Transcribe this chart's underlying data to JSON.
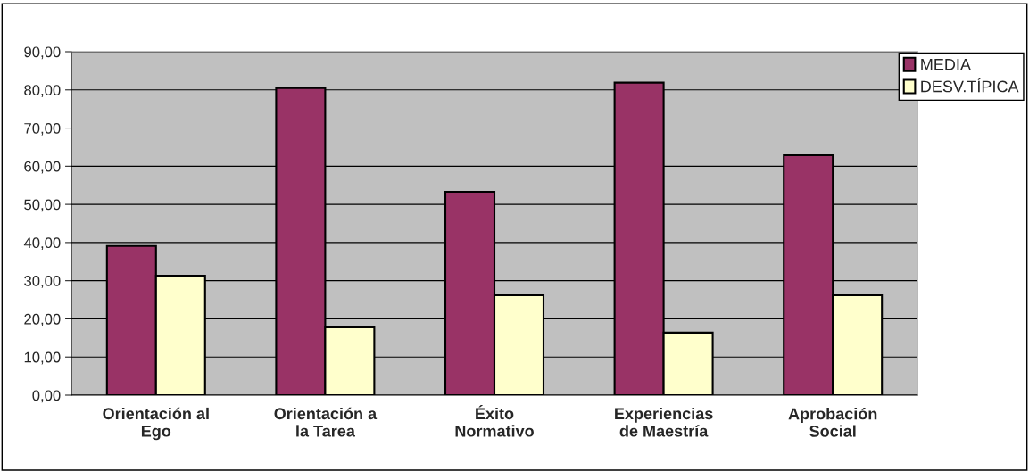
{
  "chart_data": {
    "type": "bar",
    "categories": [
      "Orientación al\nEgo",
      "Orientación a\nla Tarea",
      "Éxito\nNormativo",
      "Experiencias\nde Maestría",
      "Aprobación\nSocial"
    ],
    "series": [
      {
        "name": "MEDIA",
        "color": "#993366",
        "values": [
          39.1,
          80.5,
          53.3,
          81.9,
          62.9
        ]
      },
      {
        "name": "DESV.TÍPICA",
        "color": "#ffffcc",
        "values": [
          31.3,
          17.8,
          26.2,
          16.4,
          26.2
        ]
      }
    ],
    "ylim": [
      0,
      90
    ],
    "yticks": [
      {
        "value": 0,
        "label": "0,00"
      },
      {
        "value": 10,
        "label": "10,00"
      },
      {
        "value": 20,
        "label": "20,00"
      },
      {
        "value": 30,
        "label": "30,00"
      },
      {
        "value": 40,
        "label": "40,00"
      },
      {
        "value": 50,
        "label": "50,00"
      },
      {
        "value": 60,
        "label": "60,00"
      },
      {
        "value": 70,
        "label": "70,00"
      },
      {
        "value": 80,
        "label": "80,00"
      },
      {
        "value": 90,
        "label": "90,00"
      }
    ],
    "grid": "y",
    "legend": "top right"
  }
}
